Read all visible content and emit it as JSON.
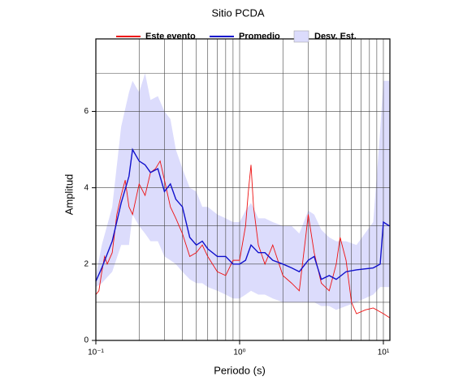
{
  "chart_data": {
    "type": "line",
    "title": "Sitio PCDA",
    "x_label": "Periodo (s)",
    "y_label": "Amplitud",
    "xscale": "log",
    "xlim": [
      0.1,
      11.1
    ],
    "ylim": [
      0,
      7.9
    ],
    "xticks": [
      {
        "value": 0.1,
        "label": "10⁻¹"
      },
      {
        "value": 1,
        "label": "10⁰"
      },
      {
        "value": 10,
        "label": "10¹"
      }
    ],
    "xgrid": [
      0.2,
      0.3,
      0.4,
      0.5,
      0.6,
      0.7,
      0.8,
      0.9,
      2,
      3,
      4,
      5,
      6,
      7,
      8,
      9
    ],
    "yticks": [
      0,
      2,
      4,
      6
    ],
    "ygrid": [
      1,
      3,
      5,
      7
    ],
    "grid": true,
    "legend": "top",
    "series": [
      {
        "name": "Este evento",
        "color": "#ee1111",
        "kind": "line",
        "x": [
          0.1,
          0.105,
          0.11,
          0.115,
          0.12,
          0.13,
          0.14,
          0.15,
          0.16,
          0.17,
          0.18,
          0.2,
          0.22,
          0.24,
          0.26,
          0.28,
          0.3,
          0.33,
          0.36,
          0.4,
          0.45,
          0.5,
          0.55,
          0.6,
          0.7,
          0.8,
          0.9,
          1.0,
          1.1,
          1.15,
          1.2,
          1.25,
          1.35,
          1.5,
          1.7,
          2.0,
          2.3,
          2.6,
          2.9,
          3.0,
          3.3,
          3.7,
          4.2,
          4.7,
          5.0,
          5.5,
          6.0,
          6.5,
          7.5,
          8.5,
          10,
          11
        ],
        "values": [
          1.2,
          1.3,
          1.8,
          2.2,
          2.0,
          2.3,
          3.3,
          3.8,
          4.2,
          3.5,
          3.3,
          4.1,
          3.8,
          4.4,
          4.5,
          4.7,
          4.2,
          3.5,
          3.2,
          2.8,
          2.2,
          2.3,
          2.5,
          2.2,
          1.8,
          1.7,
          2.1,
          2.1,
          3.0,
          3.9,
          4.6,
          3.5,
          2.5,
          2.0,
          2.5,
          1.7,
          1.5,
          1.3,
          2.8,
          3.3,
          2.3,
          1.5,
          1.3,
          2.0,
          2.7,
          2.1,
          1.0,
          0.7,
          0.8,
          0.85,
          0.7,
          0.6
        ]
      },
      {
        "name": "Promedio",
        "color": "#1111cc",
        "kind": "line",
        "x": [
          0.1,
          0.11,
          0.13,
          0.15,
          0.17,
          0.18,
          0.2,
          0.22,
          0.24,
          0.27,
          0.3,
          0.33,
          0.36,
          0.4,
          0.45,
          0.5,
          0.55,
          0.6,
          0.7,
          0.8,
          0.9,
          1.0,
          1.1,
          1.2,
          1.35,
          1.5,
          1.7,
          2.0,
          2.3,
          2.6,
          3.0,
          3.3,
          3.7,
          4.2,
          4.7,
          5.5,
          6.5,
          8.5,
          9.5,
          10,
          11
        ],
        "values": [
          1.55,
          1.9,
          2.6,
          3.6,
          4.3,
          5.0,
          4.7,
          4.6,
          4.4,
          4.5,
          3.9,
          4.1,
          3.7,
          3.5,
          2.7,
          2.5,
          2.6,
          2.4,
          2.2,
          2.2,
          2.0,
          2.0,
          2.1,
          2.5,
          2.3,
          2.3,
          2.1,
          2.0,
          1.9,
          1.8,
          2.1,
          2.2,
          1.6,
          1.7,
          1.6,
          1.8,
          1.85,
          1.9,
          2.0,
          3.1,
          3.0
        ]
      },
      {
        "name": "Desv. Est.",
        "color": "#dcdcfc",
        "kind": "band",
        "x": [
          0.1,
          0.11,
          0.13,
          0.15,
          0.17,
          0.18,
          0.2,
          0.22,
          0.24,
          0.27,
          0.3,
          0.33,
          0.36,
          0.4,
          0.45,
          0.5,
          0.55,
          0.6,
          0.7,
          0.8,
          0.9,
          1.0,
          1.1,
          1.2,
          1.35,
          1.5,
          1.7,
          2.0,
          2.3,
          2.6,
          3.0,
          3.3,
          3.7,
          4.2,
          4.7,
          5.5,
          6.5,
          8.5,
          9.5,
          10,
          11
        ],
        "upper": [
          1.7,
          2.5,
          3.5,
          5.6,
          6.5,
          6.8,
          6.5,
          7.0,
          6.3,
          6.4,
          6.0,
          5.8,
          5.0,
          4.5,
          4.0,
          3.9,
          3.5,
          3.5,
          3.3,
          3.2,
          3.1,
          3.1,
          3.4,
          3.6,
          3.2,
          3.2,
          3.1,
          3.0,
          3.0,
          2.8,
          3.4,
          3.3,
          2.9,
          2.7,
          2.6,
          2.6,
          2.5,
          3.1,
          5.5,
          6.8,
          6.8
        ],
        "lower": [
          1.4,
          1.5,
          1.8,
          2.5,
          2.5,
          3.3,
          3.0,
          2.8,
          2.6,
          2.6,
          2.2,
          2.1,
          2.0,
          1.8,
          1.6,
          1.5,
          1.5,
          1.4,
          1.3,
          1.2,
          1.1,
          1.1,
          1.2,
          1.3,
          1.2,
          1.2,
          1.1,
          1.0,
          1.0,
          1.0,
          1.0,
          1.0,
          0.9,
          0.9,
          0.8,
          0.9,
          1.0,
          1.2,
          1.4,
          1.4,
          1.4
        ]
      }
    ]
  }
}
